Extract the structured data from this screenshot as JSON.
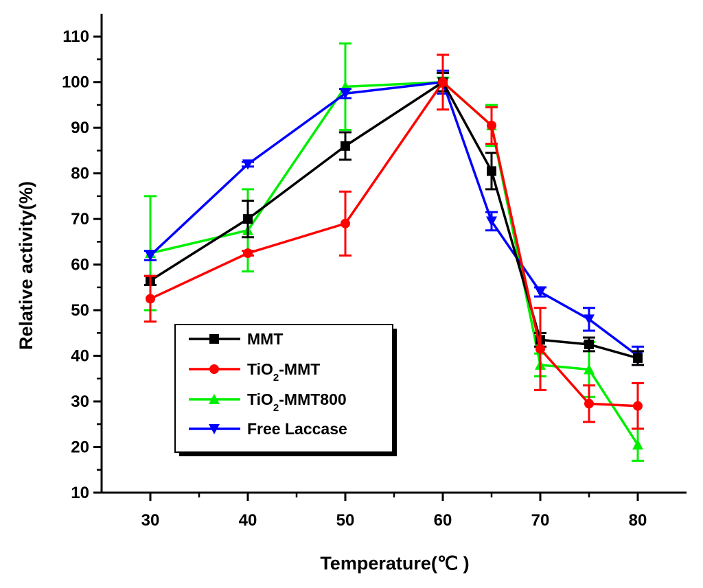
{
  "chart_data": {
    "type": "line",
    "xlabel": "Temperature(℃ )",
    "ylabel": "Relative activity(%)",
    "xlim": [
      25,
      85
    ],
    "ylim": [
      10,
      115
    ],
    "x_ticks": [
      30,
      40,
      50,
      60,
      70,
      80
    ],
    "x_minor_ticks": [
      35,
      45,
      55,
      65,
      75
    ],
    "y_ticks": [
      10,
      20,
      30,
      40,
      50,
      60,
      70,
      80,
      90,
      100,
      110
    ],
    "y_minor_ticks": [
      15,
      25,
      35,
      45,
      55,
      65,
      75,
      85,
      95,
      105
    ],
    "legend": {
      "position": "lower-left"
    },
    "x": [
      30,
      40,
      50,
      60,
      65,
      70,
      75,
      80
    ],
    "series": [
      {
        "name": "MMT",
        "color": "#000000",
        "marker": "square",
        "values": [
          56.5,
          70,
          86,
          100,
          80.5,
          43.5,
          42.5,
          39.5
        ],
        "errors": [
          1,
          4,
          3,
          2,
          4,
          1.5,
          1.5,
          1.5
        ]
      },
      {
        "name": "TiO2-MMT",
        "name_parts": {
          "base": "TiO",
          "sub": "2",
          "rest": "-MMT"
        },
        "color": "#ff0000",
        "marker": "circle",
        "values": [
          52.5,
          62.5,
          69,
          100,
          90.5,
          41.5,
          29.5,
          29
        ],
        "errors": [
          5,
          0.5,
          7,
          6,
          4,
          9,
          4,
          5
        ]
      },
      {
        "name": "TiO2-MMT800",
        "name_parts": {
          "base": "TiO",
          "sub": "2",
          "rest": "-MMT800"
        },
        "color": "#00ee00",
        "marker": "triangle-up",
        "values": [
          62.5,
          67.5,
          99,
          100,
          90.5,
          38,
          37,
          20.5
        ],
        "errors": [
          12.5,
          9,
          9.5,
          1,
          4.5,
          2.5,
          6,
          3.5
        ]
      },
      {
        "name": "Free Laccase",
        "color": "#0000ff",
        "marker": "triangle-down",
        "values": [
          62,
          82,
          97.5,
          100,
          69.5,
          54,
          48,
          40
        ],
        "errors": [
          1,
          0.5,
          1,
          2.5,
          2,
          1,
          2.5,
          2
        ]
      }
    ]
  }
}
